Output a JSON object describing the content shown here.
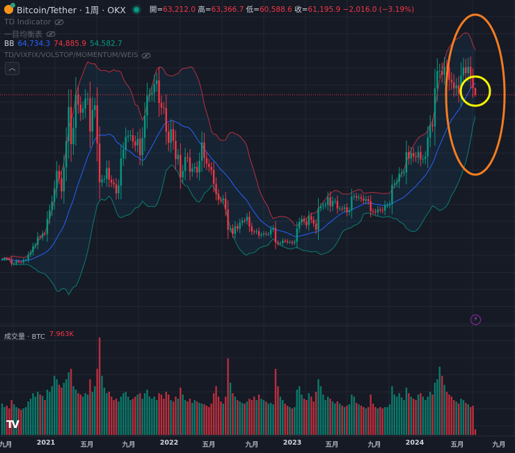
{
  "header": {
    "symbol": "Bitcoin/Tether · 1周 · OKX",
    "open_label": "開=",
    "open": "63,212.0",
    "high_label": "高=",
    "high": "63,366.7",
    "low_label": "低=",
    "low": "60,588.6",
    "close_label": "收=",
    "close": "61,195.9",
    "change": "−2,016.0 (−3.19%)",
    "market_status": "open"
  },
  "indicators": [
    {
      "name": "TD Indicator",
      "hidden": true
    },
    {
      "name": "一目均衡表",
      "hidden": true
    },
    {
      "name": "BB",
      "values": [
        "64,734.3",
        "74,885.9",
        "54,582.7"
      ]
    },
    {
      "name": "TD/VIXFIX/VOLSTOP/MOMENTUM/WEIS",
      "hidden": true
    }
  ],
  "volume": {
    "label": "成交量 · BTC",
    "value": "7.963K"
  },
  "colors": {
    "up": "#089981",
    "down": "#f23645",
    "bb_basis": "#2962ff",
    "bb_upper": "#f23645",
    "bb_lower": "#089981",
    "annotation_outer": "#f57c20",
    "annotation_inner": "#f5f500",
    "background": "#161a25"
  },
  "chart_data": {
    "type": "candlestick",
    "interval": "1 week",
    "price_unit": "USDT (thousands)",
    "x_tick_labels": [
      "九月",
      "2021",
      "五月",
      "九月",
      "2022",
      "五月",
      "九月",
      "2023",
      "五月",
      "九月",
      "2024",
      "五月",
      "九月"
    ],
    "closes": [
      11.6,
      11.9,
      11.7,
      11.6,
      10.3,
      10.4,
      11.1,
      10.8,
      10.7,
      11.4,
      11.5,
      13.0,
      13.8,
      15.5,
      16.0,
      18.4,
      18.2,
      19.3,
      19.2,
      23.8,
      26.4,
      29.0,
      33.0,
      38.2,
      36.0,
      32.1,
      39.3,
      47.2,
      57.5,
      46.3,
      51.2,
      61.2,
      58.2,
      55.8,
      57.0,
      60.0,
      60.1,
      50.1,
      56.6,
      58.0,
      46.5,
      34.8,
      35.7,
      35.8,
      39.1,
      35.6,
      34.7,
      34.2,
      31.5,
      33.8,
      42.0,
      44.6,
      48.5,
      48.9,
      49.0,
      47.1,
      45.9,
      47.9,
      43.0,
      48.2,
      54.9,
      60.9,
      61.3,
      61.8,
      64.4,
      65.5,
      58.7,
      57.3,
      57.2,
      50.1,
      46.7,
      50.8,
      47.3,
      41.8,
      43.1,
      36.3,
      38.2,
      42.4,
      42.2,
      38.0,
      39.0,
      39.4,
      37.8,
      41.3,
      46.8,
      42.1,
      40.4,
      39.4,
      38.5,
      34.3,
      31.3,
      29.5,
      29.4,
      29.9,
      26.6,
      20.5,
      21.0,
      19.3,
      21.6,
      20.8,
      22.6,
      23.3,
      23.2,
      24.4,
      21.5,
      20.0,
      19.8,
      20.1,
      18.8,
      19.1,
      19.4,
      19.2,
      19.2,
      20.6,
      21.1,
      16.7,
      16.3,
      16.5,
      17.2,
      17.1,
      16.8,
      16.8,
      16.5,
      16.9,
      20.9,
      22.8,
      23.8,
      23.0,
      21.9,
      24.6,
      23.5,
      22.4,
      20.5,
      27.0,
      27.5,
      27.8,
      28.0,
      30.3,
      27.6,
      29.2,
      29.2,
      26.9,
      26.9,
      26.8,
      27.2,
      25.8,
      26.3,
      30.5,
      30.6,
      30.2,
      30.3,
      29.9,
      29.3,
      29.7,
      29.1,
      26.1,
      26.0,
      25.8,
      26.6,
      26.5,
      26.3,
      27.9,
      27.9,
      28.3,
      34.1,
      34.5,
      35.0,
      37.4,
      37.7,
      37.7,
      43.9,
      42.0,
      43.6,
      42.6,
      42.3,
      43.9,
      41.7,
      41.8,
      42.6,
      48.3,
      52.1,
      51.7,
      63.1,
      68.3,
      68.4,
      67.2,
      69.6,
      69.4,
      65.7,
      64.9,
      63.1,
      64.0,
      61.5,
      67.0,
      69.4,
      67.7,
      69.6,
      66.2,
      63.2,
      61.196
    ],
    "last_candle": {
      "open": 63.212,
      "high": 63.3667,
      "low": 60.5886,
      "close": 61.1959
    },
    "volumes_k": [
      45,
      40,
      42,
      38,
      50,
      44,
      40,
      38,
      36,
      38,
      40,
      48,
      52,
      60,
      55,
      62,
      58,
      56,
      50,
      65,
      62,
      70,
      85,
      80,
      72,
      68,
      75,
      80,
      90,
      95,
      70,
      65,
      60,
      58,
      55,
      60,
      58,
      80,
      62,
      70,
      95,
      140,
      85,
      68,
      60,
      62,
      55,
      50,
      52,
      48,
      55,
      60,
      62,
      55,
      50,
      52,
      55,
      58,
      60,
      52,
      60,
      65,
      55,
      52,
      55,
      50,
      60,
      58,
      52,
      62,
      58,
      50,
      48,
      55,
      52,
      68,
      58,
      50,
      48,
      52,
      46,
      50,
      48,
      46,
      45,
      44,
      42,
      40,
      45,
      60,
      70,
      55,
      48,
      45,
      55,
      110,
      75,
      60,
      55,
      50,
      48,
      46,
      45,
      48,
      52,
      50,
      55,
      50,
      58,
      52,
      50,
      48,
      45,
      46,
      44,
      95,
      70,
      55,
      50,
      45,
      42,
      40,
      38,
      40,
      65,
      70,
      58,
      52,
      50,
      60,
      55,
      48,
      62,
      80,
      70,
      58,
      50,
      55,
      52,
      48,
      45,
      48,
      45,
      42,
      40,
      42,
      44,
      58,
      55,
      46,
      44,
      42,
      40,
      38,
      40,
      58,
      45,
      40,
      38,
      40,
      38,
      40,
      40,
      44,
      70,
      58,
      55,
      60,
      54,
      50,
      68,
      60,
      55,
      52,
      50,
      58,
      60,
      55,
      50,
      55,
      62,
      58,
      75,
      80,
      98,
      85,
      72,
      62,
      58,
      55,
      50,
      48,
      45,
      52,
      50,
      46,
      44,
      40,
      42,
      8
    ],
    "bollinger": {
      "period": 20,
      "stdev": 2
    },
    "grid": true
  }
}
